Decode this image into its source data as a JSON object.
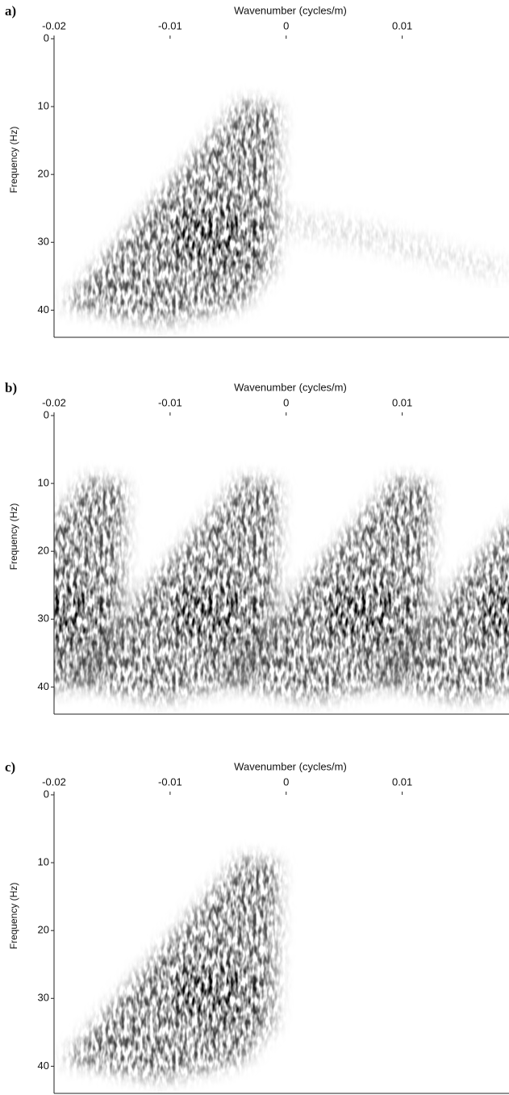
{
  "chart_data": [
    {
      "type": "image",
      "panel_label": "a)",
      "xlabel": "Wavenumber  (cycles/m)",
      "ylabel": "Frequency (Hz)",
      "xlim": [
        -0.02,
        0.0192
      ],
      "ylim": [
        0,
        44
      ],
      "y_inverted": true,
      "replicated": false,
      "xticks": [
        -0.02,
        -0.01,
        0,
        0.01
      ],
      "yticks": [
        0,
        10,
        20,
        30,
        40
      ]
    },
    {
      "type": "image",
      "panel_label": "b)",
      "xlabel": "Wavenumber  (cycles/m)",
      "ylabel": "Frequency (Hz)",
      "xlim": [
        -0.02,
        0.0192
      ],
      "ylim": [
        0,
        44
      ],
      "y_inverted": true,
      "replicated": true,
      "xticks": [
        -0.02,
        -0.01,
        0,
        0.01
      ],
      "yticks": [
        0,
        10,
        20,
        30,
        40
      ]
    },
    {
      "type": "image",
      "panel_label": "c)",
      "xlabel": "Wavenumber  (cycles/m)",
      "ylabel": "Frequency (Hz)",
      "xlim": [
        -0.02,
        0.0192
      ],
      "ylim": [
        0,
        44
      ],
      "y_inverted": true,
      "replicated": false,
      "xticks": [
        -0.02,
        -0.01,
        0,
        0.01
      ],
      "yticks": [
        0,
        10,
        20,
        30,
        40
      ]
    }
  ]
}
